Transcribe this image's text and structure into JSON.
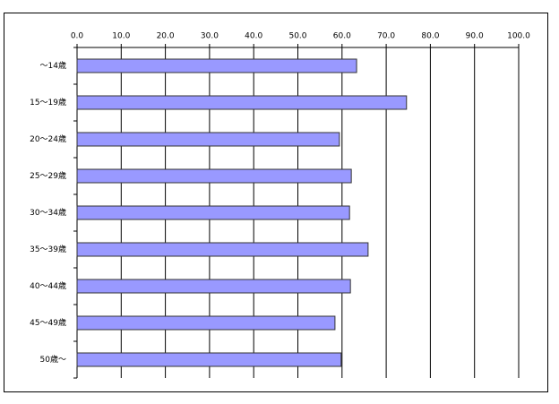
{
  "chart_data": {
    "type": "bar",
    "orientation": "horizontal",
    "categories": [
      "～14歳",
      "15～19歳",
      "20～24歳",
      "25～29歳",
      "30～34歳",
      "35～39歳",
      "40～44歳",
      "45～49歳",
      "50歳～"
    ],
    "values": [
      63.3,
      74.6,
      59.4,
      62.1,
      61.7,
      65.9,
      61.9,
      58.4,
      59.8
    ],
    "color": "#9999ff",
    "xlim": [
      0,
      100
    ],
    "xticks": [
      {
        "value": 0,
        "label": "0.0"
      },
      {
        "value": 10,
        "label": "10.0"
      },
      {
        "value": 20,
        "label": "20.0"
      },
      {
        "value": 30,
        "label": "30.0"
      },
      {
        "value": 40,
        "label": "40.0"
      },
      {
        "value": 50,
        "label": "50.0"
      },
      {
        "value": 60,
        "label": "60.0"
      },
      {
        "value": 70,
        "label": "70.0"
      },
      {
        "value": 80,
        "label": "80.0"
      },
      {
        "value": 90,
        "label": "90.0"
      },
      {
        "value": 100,
        "label": "100.0"
      }
    ],
    "grid": true
  }
}
